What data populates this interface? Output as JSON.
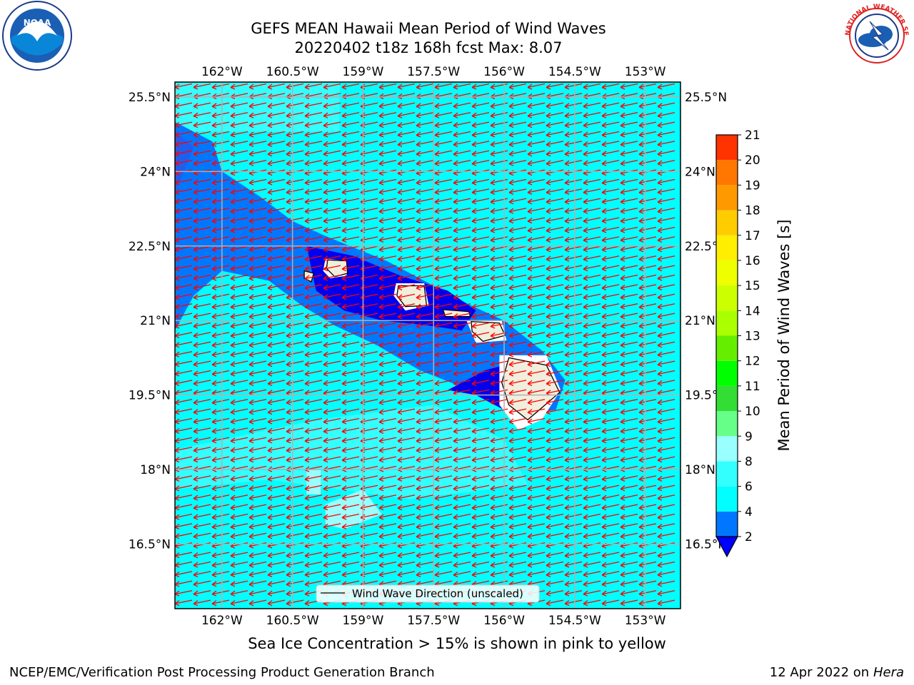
{
  "title": {
    "line1": "GEFS MEAN Hawaii Mean Period of Wind Waves",
    "line2": "20220402 t18z 168h fcst   Max: 8.07"
  },
  "map": {
    "lon_ticks": [
      "162°W",
      "160.5°W",
      "159°W",
      "157.5°W",
      "156°W",
      "154.5°W",
      "153°W"
    ],
    "lat_ticks": [
      "25.5°N",
      "24°N",
      "22.5°N",
      "21°N",
      "19.5°N",
      "18°N",
      "16.5°N"
    ],
    "lon_values": [
      -162,
      -160.5,
      -159,
      -157.5,
      -156,
      -154.5,
      -153
    ],
    "lat_values": [
      25.5,
      24,
      22.5,
      21,
      19.5,
      18,
      16.5
    ],
    "extent": {
      "lon_min": -163,
      "lon_max": -152.25,
      "lat_min": 15.2,
      "lat_max": 25.8
    },
    "legend_label": "Wind Wave Direction (unscaled)",
    "arrow_color": "#ff0000",
    "land_color": "#f0eedc",
    "ocean_color": "#00ffff",
    "islands": [
      "Niihau",
      "Kauai",
      "Oahu",
      "Molokai",
      "Maui",
      "Hawaii"
    ]
  },
  "colorbar": {
    "label": "Mean Period of Wind Waves [s]",
    "ticks": [
      "2",
      "4",
      "6",
      "8",
      "9",
      "10",
      "11",
      "12",
      "13",
      "14",
      "15",
      "16",
      "17",
      "18",
      "19",
      "20",
      "21"
    ],
    "colors": [
      "#0077ff",
      "#00ffff",
      "#33ffff",
      "#99ffff",
      "#66ff88",
      "#33dd33",
      "#00ff00",
      "#66ee00",
      "#aaff00",
      "#ccff00",
      "#eeff00",
      "#ffee00",
      "#ffcc00",
      "#ff9900",
      "#ff7700",
      "#ff3300",
      "#ff0000"
    ],
    "under_color": "#0000ff"
  },
  "subcaption": "Sea Ice Concentration > 15% is shown in pink to yellow",
  "footer": {
    "left": "NCEP/EMC/Verification Post Processing Product Generation Branch",
    "right_prefix": "12 Apr 2022 on ",
    "right_host": "Hera"
  },
  "logos": {
    "noaa_text": "NOAA",
    "nws_text": "NATIONAL WEATHER SERVICE"
  }
}
